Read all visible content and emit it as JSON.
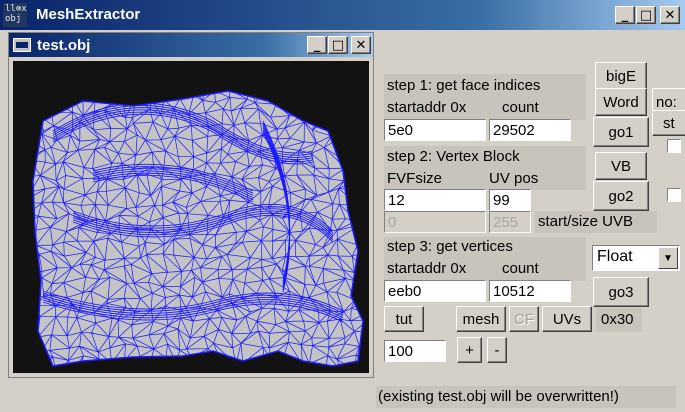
{
  "app": {
    "icon_text_line1": "ll⊗x",
    "icon_text_line2": "obj",
    "title": "MeshExtractor",
    "minimize": "_",
    "maximize": "□",
    "close": "✕"
  },
  "child_window": {
    "title": "test.obj",
    "minimize": "_",
    "maximize": "□",
    "close": "✕"
  },
  "colors": {
    "mesh_fill": "#c4c4c4",
    "wire": "#1a1aff",
    "viewport_bg": "#121212"
  },
  "step1": {
    "title": "step 1: get face indices",
    "addr_label": "startaddr 0x",
    "count_label": "count",
    "addr_value": "5e0",
    "count_value": "29502",
    "go_label": "go1"
  },
  "step2": {
    "title": "step 2: Vertex Block",
    "fvf_label": "FVFsize",
    "uv_label": "UV pos",
    "fvf_value": "12",
    "uv_value": "99",
    "start_value": "0",
    "size_value": "255",
    "startsize_label": "start/size UVB",
    "go_label": "go2"
  },
  "step3": {
    "title": "step 3: get vertices",
    "addr_label": "startaddr 0x",
    "count_label": "count",
    "addr_value": "eeb0",
    "count_value": "10512",
    "go_label": "go3"
  },
  "buttons": {
    "bigE": "bigE",
    "word": "Word",
    "vb": "VB",
    "tut": "tut",
    "mesh": "mesh",
    "cf": "CF",
    "uvs": "UVs",
    "plus": "+",
    "minus": "-",
    "nos": "no:",
    "st": "st"
  },
  "format": {
    "selected": "Float",
    "stride": "0x30"
  },
  "scale": {
    "value": "100"
  },
  "status": "(existing test.obj will be overwritten!)"
}
